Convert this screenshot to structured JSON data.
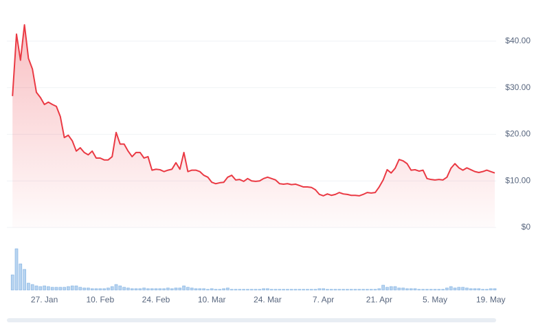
{
  "chart_data": {
    "type": "line",
    "categories": [
      null,
      null,
      null,
      null,
      null,
      null,
      null,
      null,
      "27. Jan",
      null,
      null,
      null,
      null,
      null,
      null,
      null,
      null,
      null,
      null,
      null,
      null,
      null,
      "10. Feb",
      null,
      null,
      null,
      null,
      null,
      null,
      null,
      null,
      null,
      null,
      null,
      null,
      null,
      "24. Feb",
      null,
      null,
      null,
      null,
      null,
      null,
      null,
      null,
      null,
      null,
      null,
      null,
      null,
      "10. Mar",
      null,
      null,
      null,
      null,
      null,
      null,
      null,
      null,
      null,
      null,
      null,
      null,
      null,
      "24. Mar",
      null,
      null,
      null,
      null,
      null,
      null,
      null,
      null,
      null,
      null,
      null,
      null,
      null,
      "7. Apr",
      null,
      null,
      null,
      null,
      null,
      null,
      null,
      null,
      null,
      null,
      null,
      null,
      null,
      "21. Apr",
      null,
      null,
      null,
      null,
      null,
      null,
      null,
      null,
      null,
      null,
      null,
      null,
      null,
      "5. May",
      null,
      null,
      null,
      null,
      null,
      null,
      null,
      null,
      null,
      null,
      null,
      null,
      null,
      "19. May",
      null
    ],
    "series": [
      {
        "color": "#ea3943",
        "values": [
          28.2,
          41.5,
          35.9,
          43.5,
          36.3,
          34,
          29,
          27.9,
          26.4,
          26.9,
          26.4,
          26,
          23.8,
          19.3,
          19.8,
          18.6,
          16.4,
          17.1,
          16.1,
          15.6,
          16.4,
          14.9,
          14.9,
          14.5,
          14.5,
          15.2,
          20.4,
          17.9,
          17.9,
          16.4,
          15.2,
          16.1,
          16.1,
          14.9,
          15.2,
          12.3,
          12.5,
          12.4,
          12,
          12.3,
          12.5,
          13.9,
          12.5,
          16.1,
          12,
          12.3,
          12.3,
          12,
          11.2,
          10.8,
          9.7,
          9.4,
          9.6,
          9.7,
          10.8,
          11.2,
          10.2,
          10.3,
          9.9,
          10.5,
          10,
          9.9,
          10,
          10.5,
          10.8,
          10.5,
          10.2,
          9.4,
          9.3,
          9.4,
          9.2,
          9.3,
          9,
          8.7,
          8.7,
          8.6,
          8.1,
          7.1,
          6.8,
          7.2,
          6.9,
          7.1,
          7.5,
          7.2,
          7.1,
          6.9,
          6.9,
          6.8,
          7.1,
          7.5,
          7.4,
          7.5,
          8.7,
          10.2,
          12.4,
          11.7,
          12.7,
          14.6,
          14.3,
          13.7,
          12.3,
          12.4,
          12.1,
          12.3,
          10.5,
          10.3,
          10.2,
          10.3,
          10.2,
          10.8,
          12.7,
          13.7,
          12.8,
          12.3,
          12.8,
          12.4,
          12,
          11.8,
          12,
          12.3,
          12,
          11.7
        ]
      },
      {
        "color": "#b8d4f0",
        "values": [
          22,
          60,
          38,
          30,
          10,
          8,
          6,
          5,
          6,
          5,
          4,
          4,
          4,
          4,
          5,
          6,
          6,
          4,
          3,
          3,
          2,
          2,
          2,
          2,
          3,
          5,
          8,
          6,
          4,
          3,
          2,
          2,
          2,
          3,
          2,
          2,
          2,
          2,
          2,
          3,
          2,
          3,
          3,
          6,
          4,
          3,
          2,
          2,
          2,
          1,
          2,
          1,
          1,
          2,
          3,
          1,
          1,
          1,
          1,
          1,
          1,
          1,
          1,
          2,
          2,
          1,
          1,
          1,
          1,
          1,
          1,
          1,
          1,
          1,
          1,
          1,
          1,
          2,
          2,
          1,
          1,
          1,
          1,
          1,
          1,
          1,
          1,
          1,
          1,
          1,
          1,
          1,
          2,
          7,
          4,
          5,
          5,
          3,
          3,
          2,
          2,
          2,
          1,
          1,
          1,
          1,
          1,
          1,
          1,
          3,
          5,
          3,
          4,
          4,
          3,
          2,
          2,
          2,
          1,
          1,
          2,
          2
        ]
      }
    ],
    "ylim": [
      0,
      44.4
    ],
    "yticks": [
      {
        "value": 0,
        "label": "$0"
      },
      {
        "value": 10,
        "label": "$10.00"
      },
      {
        "value": 20,
        "label": "$20.00"
      },
      {
        "value": 30,
        "label": "$30.00"
      },
      {
        "value": 40,
        "label": "$40.00"
      }
    ],
    "grid": true
  }
}
